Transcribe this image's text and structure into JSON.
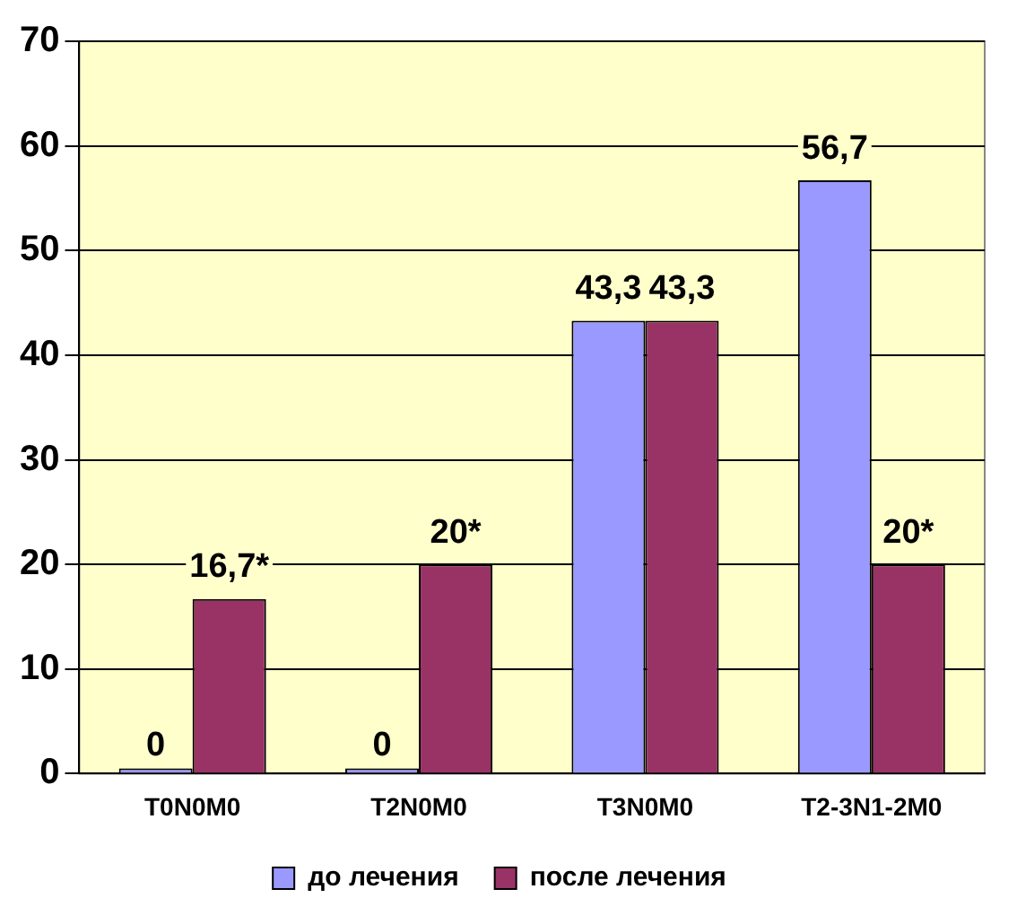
{
  "chart_data": {
    "type": "bar",
    "categories": [
      "T0N0M0",
      "T2N0M0",
      "T3N0M0",
      "T2-3N1-2M0"
    ],
    "series": [
      {
        "name": "до лечения",
        "color": "#9999ff",
        "values": [
          0,
          0,
          43.3,
          56.7
        ],
        "value_labels": [
          "0",
          "0",
          "43,3",
          "56,7"
        ]
      },
      {
        "name": "после лечения",
        "color": "#993366",
        "values": [
          16.7,
          20,
          43.3,
          20
        ],
        "value_labels": [
          "16,7*",
          "20*",
          "43,3",
          "20*"
        ]
      }
    ],
    "ylim": [
      0,
      70
    ],
    "yticks": [
      0,
      10,
      20,
      30,
      40,
      50,
      60,
      70
    ],
    "grid": "y",
    "legend": "bottom"
  }
}
